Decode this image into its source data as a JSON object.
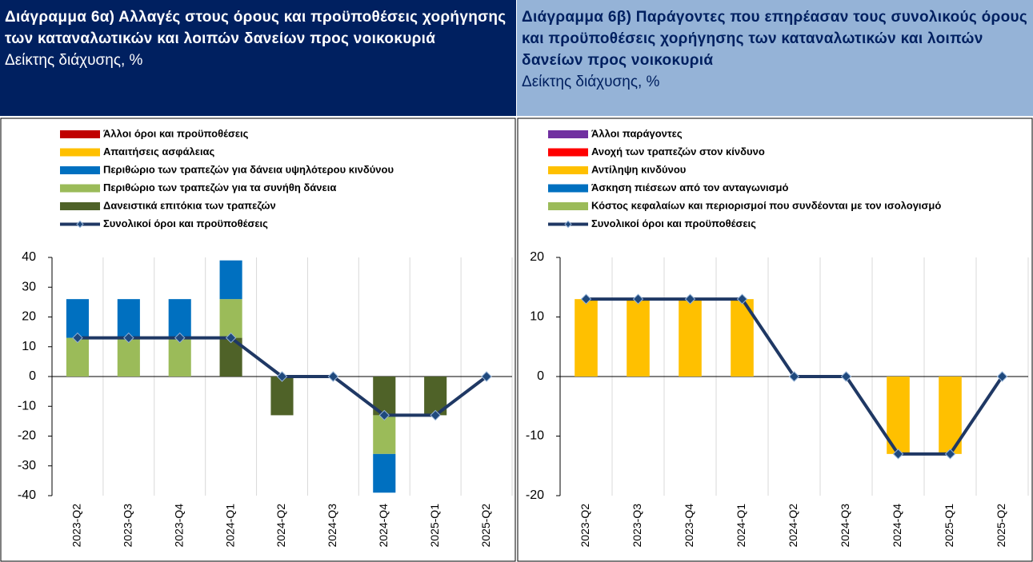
{
  "chart_data": [
    {
      "type": "stacked-bar-line",
      "title": "Διάγραμμα 6α) Αλλαγές στους όρους και προϋποθέσεις χορήγησης των καταναλωτικών και λοιπών δανείων προς νοικοκυριά",
      "subtitle": "Δείκτης διάχυσης, %",
      "categories": [
        "2023-Q2",
        "2023-Q3",
        "2023-Q4",
        "2024-Q1",
        "2024-Q2",
        "2024-Q3",
        "2024-Q4",
        "2025-Q1",
        "2025-Q2"
      ],
      "series": [
        {
          "name": "Άλλοι όροι και προϋποθέσεις",
          "color": "#c00000",
          "values": [
            0,
            0,
            0,
            0,
            0,
            0,
            0,
            0,
            0
          ]
        },
        {
          "name": "Απαιτήσεις ασφάλειας",
          "color": "#ffc000",
          "values": [
            0,
            0,
            0,
            0,
            0,
            0,
            0,
            0,
            0
          ]
        },
        {
          "name": "Περιθώριο των τραπεζών για δάνεια υψηλότερου κινδύνου",
          "color": "#0070c0",
          "values": [
            13,
            13,
            13,
            13,
            0,
            0,
            -13,
            0,
            0
          ]
        },
        {
          "name": "Περιθώριο των τραπεζών για τα συνήθη δάνεια",
          "color": "#9bbb59",
          "values": [
            13,
            13,
            13,
            13,
            0,
            0,
            -13,
            0,
            0
          ]
        },
        {
          "name": "Δανειστικά επιτόκια των τραπεζών",
          "color": "#4f6228",
          "values": [
            0,
            0,
            0,
            13,
            -13,
            0,
            -13,
            -13,
            0
          ]
        },
        {
          "name": "Συνολικοί όροι και προϋποθέσεις",
          "color": "#1f3864",
          "kind": "line",
          "values": [
            13,
            13,
            13,
            13,
            0,
            0,
            -13,
            -13,
            0
          ]
        }
      ],
      "ylim": [
        -40,
        40
      ],
      "yticks": [
        -40,
        -30,
        -20,
        -10,
        0,
        10,
        20,
        30,
        40
      ]
    },
    {
      "type": "stacked-bar-line",
      "title": "Διάγραμμα 6β) Παράγοντες που επηρέασαν τους συνολικούς όρους και προϋποθέσεις χορήγησης των καταναλωτικών και λοιπών δανείων προς νοικοκυριά",
      "subtitle": "Δείκτης διάχυσης, %",
      "categories": [
        "2023-Q2",
        "2023-Q3",
        "2023-Q4",
        "2024-Q1",
        "2024-Q2",
        "2024-Q3",
        "2024-Q4",
        "2025-Q1",
        "2025-Q2"
      ],
      "series": [
        {
          "name": "Άλλοι παράγοντες",
          "color": "#7030a0",
          "values": [
            0,
            0,
            0,
            0,
            0,
            0,
            0,
            0,
            0
          ]
        },
        {
          "name": "Ανοχή των τραπεζών στον κίνδυνο",
          "color": "#ff0000",
          "values": [
            0,
            0,
            0,
            0,
            0,
            0,
            0,
            0,
            0
          ]
        },
        {
          "name": "Αντίληψη κινδύνου",
          "color": "#ffc000",
          "values": [
            13,
            13,
            13,
            13,
            0,
            0,
            -13,
            -13,
            0
          ]
        },
        {
          "name": "Άσκηση πιέσεων από τον ανταγωνισμό",
          "color": "#0070c0",
          "values": [
            0,
            0,
            0,
            0,
            0,
            0,
            0,
            0,
            0
          ]
        },
        {
          "name": "Κόστος κεφαλαίων και περιορισμοί που συνδέονται με τον ισολογισμό",
          "color": "#9bbb59",
          "values": [
            0,
            0,
            0,
            0,
            0,
            0,
            0,
            0,
            0
          ]
        },
        {
          "name": "Συνολικοί όροι και προϋποθέσεις",
          "color": "#1f3864",
          "kind": "line",
          "values": [
            13,
            13,
            13,
            13,
            0,
            0,
            -13,
            -13,
            0
          ]
        }
      ],
      "ylim": [
        -20,
        20
      ],
      "yticks": [
        -20,
        -10,
        0,
        10,
        20
      ]
    }
  ]
}
